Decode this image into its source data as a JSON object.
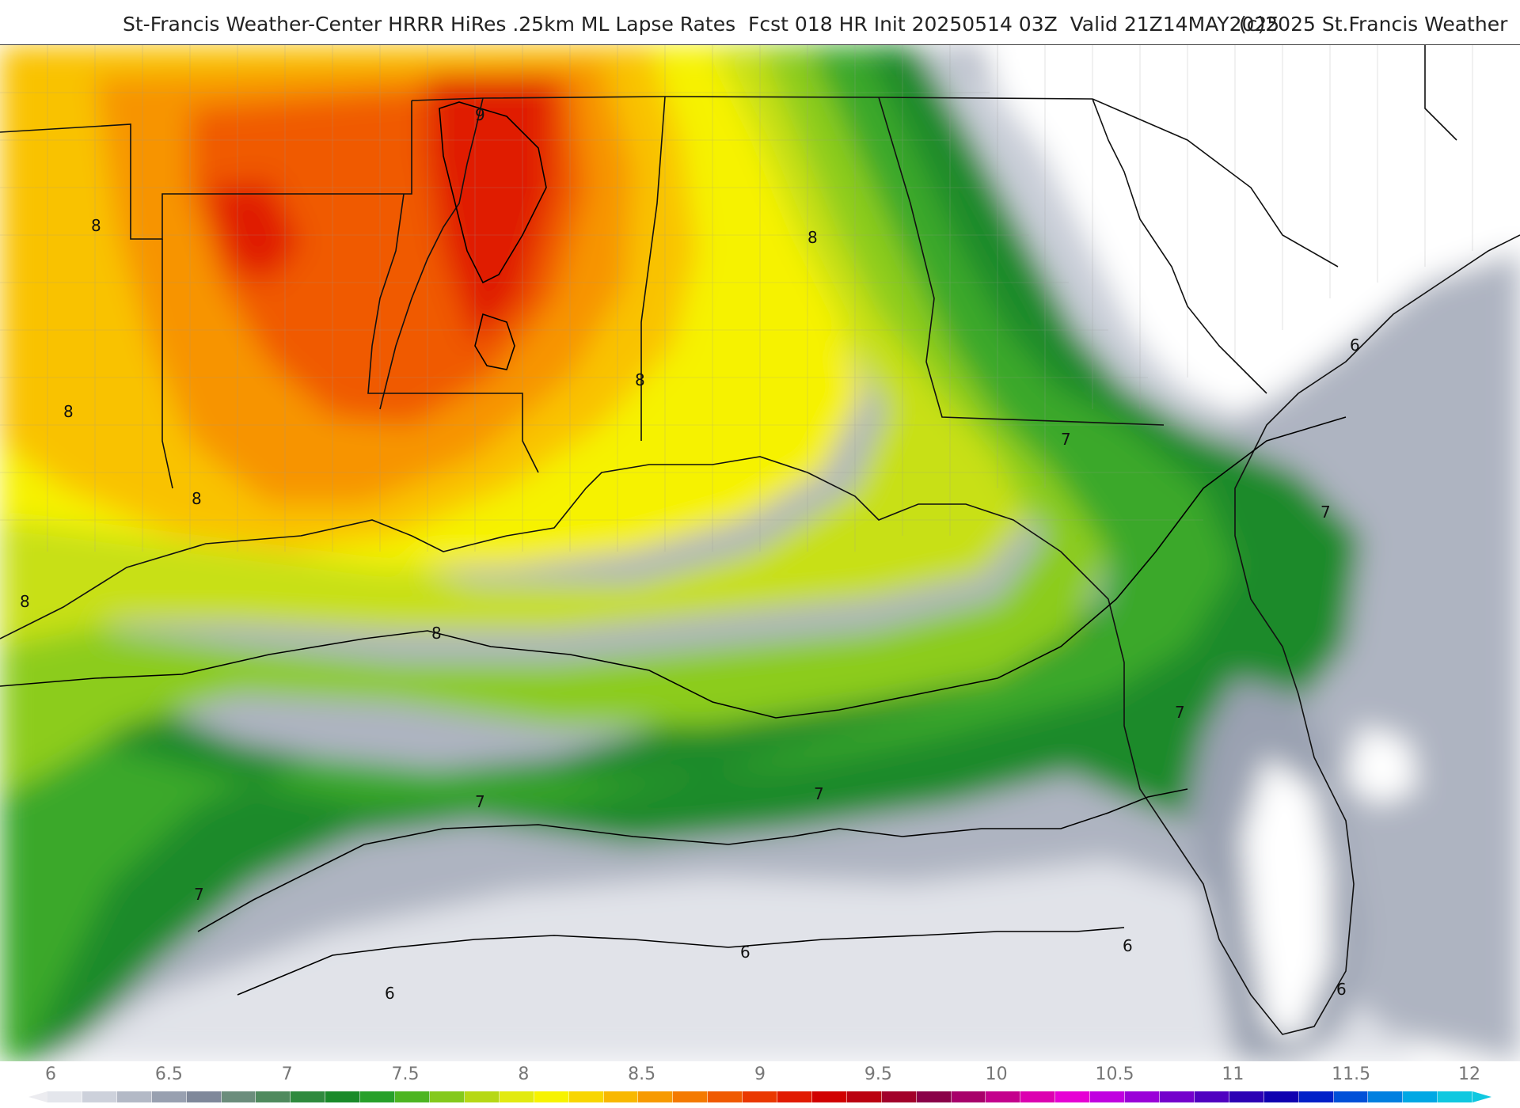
{
  "header": {
    "title": "St-Francis Weather-Center HRRR HiRes .25km ML Lapse Rates  Fcst 018 HR Init 20250514 03Z  Valid 21Z14MAY2025",
    "credit": "(c)2025 St.Francis Weather"
  },
  "contour_labels": [
    "9",
    "8",
    "8",
    "8",
    "8",
    "8",
    "8",
    "8",
    "7",
    "7",
    "7",
    "7",
    "7",
    "6",
    "6",
    "6",
    "6",
    "6"
  ],
  "legend": {
    "ticks": [
      "6",
      "6.5",
      "7",
      "7.5",
      "8",
      "8.5",
      "9",
      "9.5",
      "10",
      "10.5",
      "11",
      "11.5",
      "12"
    ],
    "colors": [
      "#e4e6ec",
      "#cdd1db",
      "#b3b9c6",
      "#98a0b0",
      "#7f889a",
      "#6b8d7c",
      "#4f8a5e",
      "#2f8a3e",
      "#1a8a2a",
      "#27a02a",
      "#4db522",
      "#84c91c",
      "#b6d815",
      "#e2ea10",
      "#f7f300",
      "#f8d600",
      "#f8b800",
      "#f79a00",
      "#f47a00",
      "#f05a00",
      "#ea3800",
      "#e11a00",
      "#d10000",
      "#bb0010",
      "#a2002a",
      "#8a0048",
      "#a8006a",
      "#c4008c",
      "#dc00b0",
      "#e600d4",
      "#c000e0",
      "#9a00d8",
      "#7400cc",
      "#5000c0",
      "#2c00b4",
      "#1000b0",
      "#0020c8",
      "#0050d8",
      "#0080e0",
      "#00a8e4",
      "#10c8e0"
    ]
  },
  "map_colors": {
    "clear": "#ffffff",
    "gray_light": "#e1e3e9",
    "gray_mid": "#aeb4c1",
    "gray_dark": "#7e8799",
    "green_dark": "#1f8a2c",
    "green_mid": "#3aa82a",
    "green_light": "#8ccc1e",
    "yellow_green": "#c8e014",
    "yellow": "#f6f200",
    "orange_light": "#f9c200",
    "orange": "#f79400",
    "orange_red": "#f05a00",
    "red": "#e01a00",
    "boundary": "#111111",
    "county": "#8a8a8a"
  }
}
